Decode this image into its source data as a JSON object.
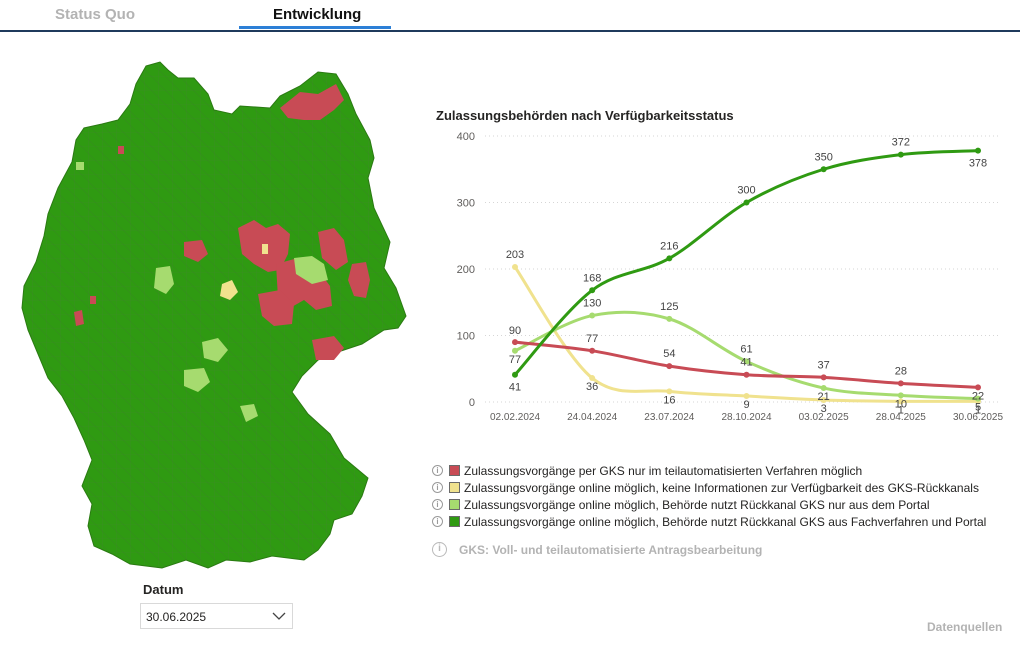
{
  "tabs": [
    {
      "label": "Status Quo"
    },
    {
      "label": "Entwicklung"
    }
  ],
  "datum": {
    "label": "Datum",
    "value": "30.06.2025"
  },
  "colors": {
    "red": "#c84b55",
    "yellow": "#f0e28e",
    "lightgreen": "#a6db6f",
    "darkgreen": "#2f9a12",
    "accent": "#2c7fd6"
  },
  "chart_data": {
    "type": "line",
    "title": "Zulassungsbehörden nach Verfügbarkeitsstatus",
    "categories": [
      "02.02.2024",
      "24.04.2024",
      "23.07.2024",
      "28.10.2024",
      "03.02.2025",
      "28.04.2025",
      "30.06.2025"
    ],
    "ylim": [
      0,
      400
    ],
    "yticks": [
      0,
      100,
      200,
      300,
      400
    ],
    "grid": true,
    "legend_position": "bottom",
    "series": [
      {
        "name": "Zulassungsvorgänge per GKS nur im teilautomatisierten Verfahren möglich",
        "color": "#c84b55",
        "values": [
          90,
          77,
          54,
          41,
          37,
          28,
          22
        ]
      },
      {
        "name": "Zulassungsvorgänge online möglich, keine Informationen zur Verfügbarkeit des GKS-Rückkanals",
        "color": "#f0e28e",
        "values": [
          203,
          36,
          16,
          9,
          3,
          1,
          1
        ]
      },
      {
        "name": "Zulassungsvorgänge online möglich, Behörde nutzt Rückkanal GKS nur aus dem Portal",
        "color": "#a6db6f",
        "values": [
          77,
          130,
          125,
          61,
          21,
          10,
          5
        ]
      },
      {
        "name": "Zulassungsvorgänge online möglich, Behörde nutzt Rückkanal GKS aus Fachverfahren und Portal",
        "color": "#2f9a12",
        "values": [
          41,
          168,
          216,
          300,
          350,
          372,
          378
        ]
      }
    ]
  },
  "gks_link": "GKS: Voll- und teilautomatisierte Antragsbearbeitung",
  "datenquellen": "Datenquellen",
  "icons": {
    "info": "info-icon",
    "chevron": "chevron-down-icon"
  }
}
